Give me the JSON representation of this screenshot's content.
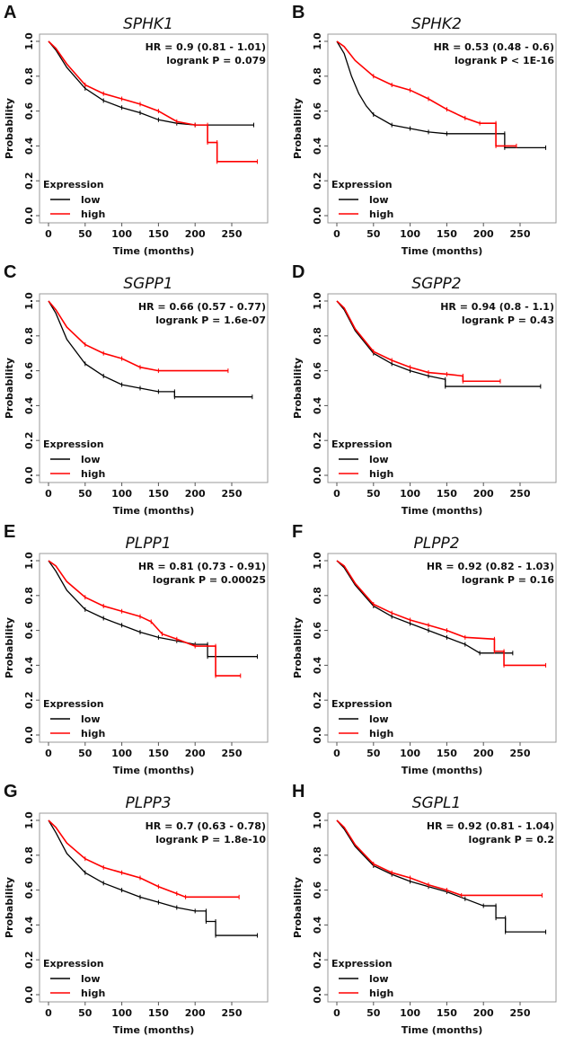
{
  "chart_data": [
    {
      "type": "line",
      "label": "A",
      "title": "SPHK1",
      "hr": "HR = 0.9 (0.81 - 1.01)",
      "p": "logrank P = 0.079",
      "series": [
        {
          "name": "low",
          "color": "#000000",
          "points": [
            [
              0,
              1
            ],
            [
              10,
              0.95
            ],
            [
              25,
              0.85
            ],
            [
              50,
              0.73
            ],
            [
              75,
              0.66
            ],
            [
              100,
              0.62
            ],
            [
              125,
              0.59
            ],
            [
              150,
              0.55
            ],
            [
              175,
              0.53
            ],
            [
              200,
              0.52
            ],
            [
              280,
              0.52
            ]
          ]
        },
        {
          "name": "high",
          "color": "#ff0000",
          "points": [
            [
              0,
              1
            ],
            [
              10,
              0.96
            ],
            [
              25,
              0.87
            ],
            [
              50,
              0.75
            ],
            [
              75,
              0.7
            ],
            [
              100,
              0.67
            ],
            [
              125,
              0.64
            ],
            [
              150,
              0.6
            ],
            [
              175,
              0.54
            ],
            [
              200,
              0.52
            ],
            [
              217,
              0.52
            ],
            [
              217,
              0.42
            ],
            [
              230,
              0.42
            ],
            [
              230,
              0.31
            ],
            [
              285,
              0.31
            ]
          ]
        }
      ]
    },
    {
      "type": "line",
      "label": "B",
      "title": "SPHK2",
      "hr": "HR = 0.53 (0.48 - 0.6)",
      "p": "logrank P < 1E-16",
      "series": [
        {
          "name": "low",
          "color": "#000000",
          "points": [
            [
              0,
              1
            ],
            [
              10,
              0.93
            ],
            [
              20,
              0.8
            ],
            [
              30,
              0.7
            ],
            [
              40,
              0.63
            ],
            [
              50,
              0.58
            ],
            [
              75,
              0.52
            ],
            [
              100,
              0.5
            ],
            [
              125,
              0.48
            ],
            [
              150,
              0.47
            ],
            [
              229,
              0.47
            ],
            [
              229,
              0.39
            ],
            [
              285,
              0.39
            ]
          ]
        },
        {
          "name": "high",
          "color": "#ff0000",
          "points": [
            [
              0,
              1
            ],
            [
              10,
              0.97
            ],
            [
              25,
              0.89
            ],
            [
              50,
              0.8
            ],
            [
              75,
              0.75
            ],
            [
              100,
              0.72
            ],
            [
              125,
              0.67
            ],
            [
              150,
              0.61
            ],
            [
              175,
              0.56
            ],
            [
              195,
              0.53
            ],
            [
              217,
              0.53
            ],
            [
              217,
              0.4
            ],
            [
              245,
              0.4
            ]
          ]
        }
      ]
    },
    {
      "type": "line",
      "label": "C",
      "title": "SGPP1",
      "hr": "HR = 0.66 (0.57 - 0.77)",
      "p": "logrank P = 1.6e-07",
      "series": [
        {
          "name": "low",
          "color": "#000000",
          "points": [
            [
              0,
              1
            ],
            [
              10,
              0.93
            ],
            [
              25,
              0.78
            ],
            [
              50,
              0.64
            ],
            [
              75,
              0.57
            ],
            [
              100,
              0.52
            ],
            [
              125,
              0.5
            ],
            [
              150,
              0.48
            ],
            [
              172,
              0.48
            ],
            [
              172,
              0.45
            ],
            [
              278,
              0.45
            ]
          ]
        },
        {
          "name": "high",
          "color": "#ff0000",
          "points": [
            [
              0,
              1
            ],
            [
              10,
              0.95
            ],
            [
              25,
              0.85
            ],
            [
              50,
              0.75
            ],
            [
              75,
              0.7
            ],
            [
              100,
              0.67
            ],
            [
              125,
              0.62
            ],
            [
              150,
              0.6
            ],
            [
              245,
              0.6
            ]
          ]
        }
      ]
    },
    {
      "type": "line",
      "label": "D",
      "title": "SGPP2",
      "hr": "HR = 0.94 (0.8 - 1.1)",
      "p": "logrank P = 0.43",
      "series": [
        {
          "name": "low",
          "color": "#000000",
          "points": [
            [
              0,
              1
            ],
            [
              10,
              0.95
            ],
            [
              25,
              0.83
            ],
            [
              50,
              0.7
            ],
            [
              75,
              0.64
            ],
            [
              100,
              0.6
            ],
            [
              125,
              0.57
            ],
            [
              148,
              0.55
            ],
            [
              148,
              0.51
            ],
            [
              278,
              0.51
            ]
          ]
        },
        {
          "name": "high",
          "color": "#ff0000",
          "points": [
            [
              0,
              1
            ],
            [
              10,
              0.96
            ],
            [
              25,
              0.84
            ],
            [
              50,
              0.71
            ],
            [
              75,
              0.66
            ],
            [
              100,
              0.62
            ],
            [
              125,
              0.59
            ],
            [
              150,
              0.58
            ],
            [
              172,
              0.57
            ],
            [
              172,
              0.54
            ],
            [
              223,
              0.54
            ]
          ]
        }
      ]
    },
    {
      "type": "line",
      "label": "E",
      "title": "PLPP1",
      "hr": "HR = 0.81 (0.73 - 0.91)",
      "p": "logrank P = 0.00025",
      "series": [
        {
          "name": "low",
          "color": "#000000",
          "points": [
            [
              0,
              1
            ],
            [
              10,
              0.94
            ],
            [
              25,
              0.83
            ],
            [
              50,
              0.72
            ],
            [
              75,
              0.67
            ],
            [
              100,
              0.63
            ],
            [
              125,
              0.59
            ],
            [
              150,
              0.56
            ],
            [
              175,
              0.54
            ],
            [
              200,
              0.52
            ],
            [
              217,
              0.52
            ],
            [
              217,
              0.45
            ],
            [
              285,
              0.45
            ]
          ]
        },
        {
          "name": "high",
          "color": "#ff0000",
          "points": [
            [
              0,
              1
            ],
            [
              10,
              0.97
            ],
            [
              25,
              0.88
            ],
            [
              50,
              0.79
            ],
            [
              75,
              0.74
            ],
            [
              100,
              0.71
            ],
            [
              125,
              0.68
            ],
            [
              140,
              0.65
            ],
            [
              155,
              0.58
            ],
            [
              175,
              0.55
            ],
            [
              200,
              0.51
            ],
            [
              228,
              0.51
            ],
            [
              228,
              0.34
            ],
            [
              262,
              0.34
            ]
          ]
        }
      ]
    },
    {
      "type": "line",
      "label": "F",
      "title": "PLPP2",
      "hr": "HR = 0.92 (0.82 - 1.03)",
      "p": "logrank P = 0.16",
      "series": [
        {
          "name": "low",
          "color": "#000000",
          "points": [
            [
              0,
              1
            ],
            [
              10,
              0.96
            ],
            [
              25,
              0.86
            ],
            [
              50,
              0.74
            ],
            [
              75,
              0.68
            ],
            [
              100,
              0.64
            ],
            [
              125,
              0.6
            ],
            [
              150,
              0.56
            ],
            [
              175,
              0.52
            ],
            [
              195,
              0.47
            ],
            [
              240,
              0.47
            ]
          ]
        },
        {
          "name": "high",
          "color": "#ff0000",
          "points": [
            [
              0,
              1
            ],
            [
              10,
              0.97
            ],
            [
              25,
              0.87
            ],
            [
              50,
              0.75
            ],
            [
              75,
              0.7
            ],
            [
              100,
              0.66
            ],
            [
              125,
              0.63
            ],
            [
              150,
              0.6
            ],
            [
              175,
              0.56
            ],
            [
              215,
              0.55
            ],
            [
              215,
              0.48
            ],
            [
              228,
              0.48
            ],
            [
              228,
              0.4
            ],
            [
              285,
              0.4
            ]
          ]
        }
      ]
    },
    {
      "type": "line",
      "label": "G",
      "title": "PLPP3",
      "hr": "HR = 0.7 (0.63 - 0.78)",
      "p": "logrank P = 1.8e-10",
      "series": [
        {
          "name": "low",
          "color": "#000000",
          "points": [
            [
              0,
              1
            ],
            [
              10,
              0.93
            ],
            [
              25,
              0.81
            ],
            [
              50,
              0.7
            ],
            [
              75,
              0.64
            ],
            [
              100,
              0.6
            ],
            [
              125,
              0.56
            ],
            [
              150,
              0.53
            ],
            [
              175,
              0.5
            ],
            [
              200,
              0.48
            ],
            [
              215,
              0.48
            ],
            [
              215,
              0.42
            ],
            [
              228,
              0.42
            ],
            [
              228,
              0.34
            ],
            [
              285,
              0.34
            ]
          ]
        },
        {
          "name": "high",
          "color": "#ff0000",
          "points": [
            [
              0,
              1
            ],
            [
              10,
              0.96
            ],
            [
              25,
              0.87
            ],
            [
              50,
              0.78
            ],
            [
              75,
              0.73
            ],
            [
              100,
              0.7
            ],
            [
              125,
              0.67
            ],
            [
              150,
              0.62
            ],
            [
              175,
              0.58
            ],
            [
              187,
              0.56
            ],
            [
              260,
              0.56
            ]
          ]
        }
      ]
    },
    {
      "type": "line",
      "label": "H",
      "title": "SGPL1",
      "hr": "HR = 0.92 (0.81 - 1.04)",
      "p": "logrank P = 0.2",
      "series": [
        {
          "name": "low",
          "color": "#000000",
          "points": [
            [
              0,
              1
            ],
            [
              10,
              0.95
            ],
            [
              25,
              0.85
            ],
            [
              50,
              0.74
            ],
            [
              75,
              0.69
            ],
            [
              100,
              0.65
            ],
            [
              125,
              0.62
            ],
            [
              150,
              0.59
            ],
            [
              175,
              0.55
            ],
            [
              200,
              0.51
            ],
            [
              217,
              0.51
            ],
            [
              217,
              0.44
            ],
            [
              230,
              0.44
            ],
            [
              230,
              0.36
            ],
            [
              285,
              0.36
            ]
          ]
        },
        {
          "name": "high",
          "color": "#ff0000",
          "points": [
            [
              0,
              1
            ],
            [
              10,
              0.96
            ],
            [
              25,
              0.86
            ],
            [
              50,
              0.75
            ],
            [
              75,
              0.7
            ],
            [
              100,
              0.67
            ],
            [
              125,
              0.63
            ],
            [
              150,
              0.6
            ],
            [
              170,
              0.57
            ],
            [
              280,
              0.57
            ]
          ]
        }
      ]
    }
  ],
  "axes": {
    "xlabel": "Time (months)",
    "ylabel": "Probability",
    "xticks": [
      "0",
      "50",
      "100",
      "150",
      "200",
      "250"
    ],
    "xtick_values": [
      0,
      50,
      100,
      150,
      200,
      250
    ],
    "yticks": [
      "0.0",
      "0.2",
      "0.4",
      "0.6",
      "0.8",
      "1.0"
    ],
    "ytick_values": [
      0,
      0.2,
      0.4,
      0.6,
      0.8,
      1.0
    ],
    "xlim": [
      0,
      290
    ],
    "ylim": [
      0,
      1
    ]
  },
  "legend": {
    "title": "Expression",
    "low": "low",
    "high": "high",
    "placement": "bottom-left"
  }
}
